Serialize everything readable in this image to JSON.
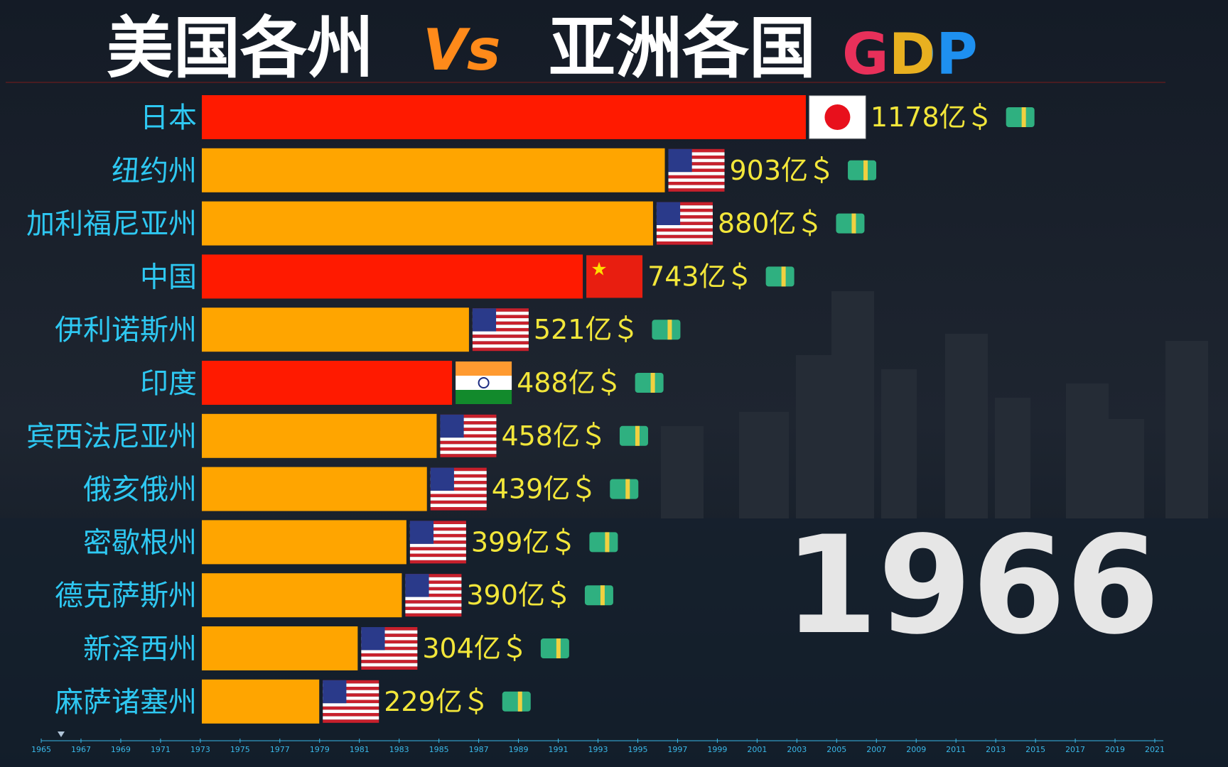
{
  "chart_data": {
    "type": "bar",
    "orientation": "horizontal",
    "title_parts": [
      "美国各州",
      "Vs",
      "亚洲各国",
      "GDP"
    ],
    "categories": [
      "日本",
      "纽约州",
      "加利福尼亚州",
      "中国",
      "伊利诺斯州",
      "印度",
      "宾西法尼亚州",
      "俄亥俄州",
      "密歇根州",
      "德克萨斯州",
      "新泽西州",
      "麻萨诸塞州"
    ],
    "values": [
      1178,
      903,
      880,
      743,
      521,
      488,
      458,
      439,
      399,
      390,
      304,
      229
    ],
    "value_labels": [
      "1178亿＄",
      "903亿＄",
      "880亿＄",
      "743亿＄",
      "521亿＄",
      "488亿＄",
      "458亿＄",
      "439亿＄",
      "399亿＄",
      "390亿＄",
      "304亿＄",
      "229亿＄"
    ],
    "colors": [
      "#ff1a00",
      "#ffa500",
      "#ffa500",
      "#ff1a00",
      "#ffa500",
      "#ff1a00",
      "#ffa500",
      "#ffa500",
      "#ffa500",
      "#ffa500",
      "#ffa500",
      "#ffa500"
    ],
    "year": 1966,
    "timeline": {
      "xlim": [
        1965,
        2021
      ],
      "xticks": [
        1965,
        1967,
        1969,
        1971,
        1973,
        1975,
        1977,
        1979,
        1981,
        1983,
        1985,
        1987,
        1989,
        1991,
        1993,
        1995,
        1997,
        1999,
        2001,
        2003,
        2005,
        2007,
        2009,
        2011,
        2013,
        2015,
        2017,
        2019,
        2021
      ]
    }
  }
}
